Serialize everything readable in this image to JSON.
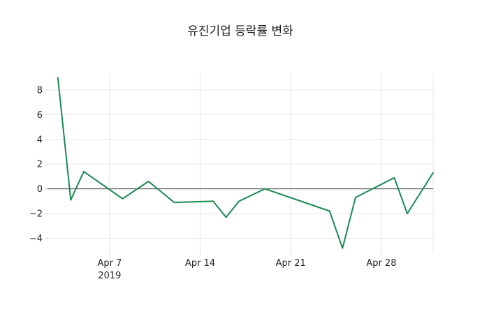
{
  "chart_data": {
    "type": "line",
    "title": "유진기업 등락률 변화",
    "xlabel": "",
    "ylabel": "",
    "legend": false,
    "grid": true,
    "line_color": "#188a51",
    "zero_line": true,
    "ylim": [
      -5.1,
      9.35
    ],
    "xlim": [
      "2019-04-02",
      "2019-05-02"
    ],
    "x": [
      "2019-04-03",
      "2019-04-04",
      "2019-04-05",
      "2019-04-08",
      "2019-04-10",
      "2019-04-12",
      "2019-04-15",
      "2019-04-16",
      "2019-04-17",
      "2019-04-19",
      "2019-04-24",
      "2019-04-25",
      "2019-04-26",
      "2019-04-29",
      "2019-04-30",
      "2019-05-02"
    ],
    "values": [
      9.0,
      -0.9,
      1.4,
      -0.8,
      0.6,
      -1.1,
      -1.0,
      -2.3,
      -1.0,
      0.0,
      -1.8,
      -4.8,
      -0.7,
      0.9,
      -2.0,
      1.3
    ],
    "x_ticks": [
      {
        "date": "2019-04-07",
        "label": "Apr 7",
        "sublabel": "2019"
      },
      {
        "date": "2019-04-14",
        "label": "Apr 14",
        "sublabel": ""
      },
      {
        "date": "2019-04-21",
        "label": "Apr 21",
        "sublabel": ""
      },
      {
        "date": "2019-04-28",
        "label": "Apr 28",
        "sublabel": ""
      }
    ],
    "y_ticks": [
      {
        "value": 8,
        "label": "8"
      },
      {
        "value": 6,
        "label": "6"
      },
      {
        "value": 4,
        "label": "4"
      },
      {
        "value": 2,
        "label": "2"
      },
      {
        "value": 0,
        "label": "0"
      },
      {
        "value": -2,
        "label": "−2"
      },
      {
        "value": -4,
        "label": "−4"
      }
    ],
    "colors": {
      "grid": "#e7e7e7",
      "zero_line": "#3d3d3d",
      "tick_mark": "#cccccc",
      "tick_text": "#262626",
      "title_text": "#1a1a1a"
    }
  }
}
